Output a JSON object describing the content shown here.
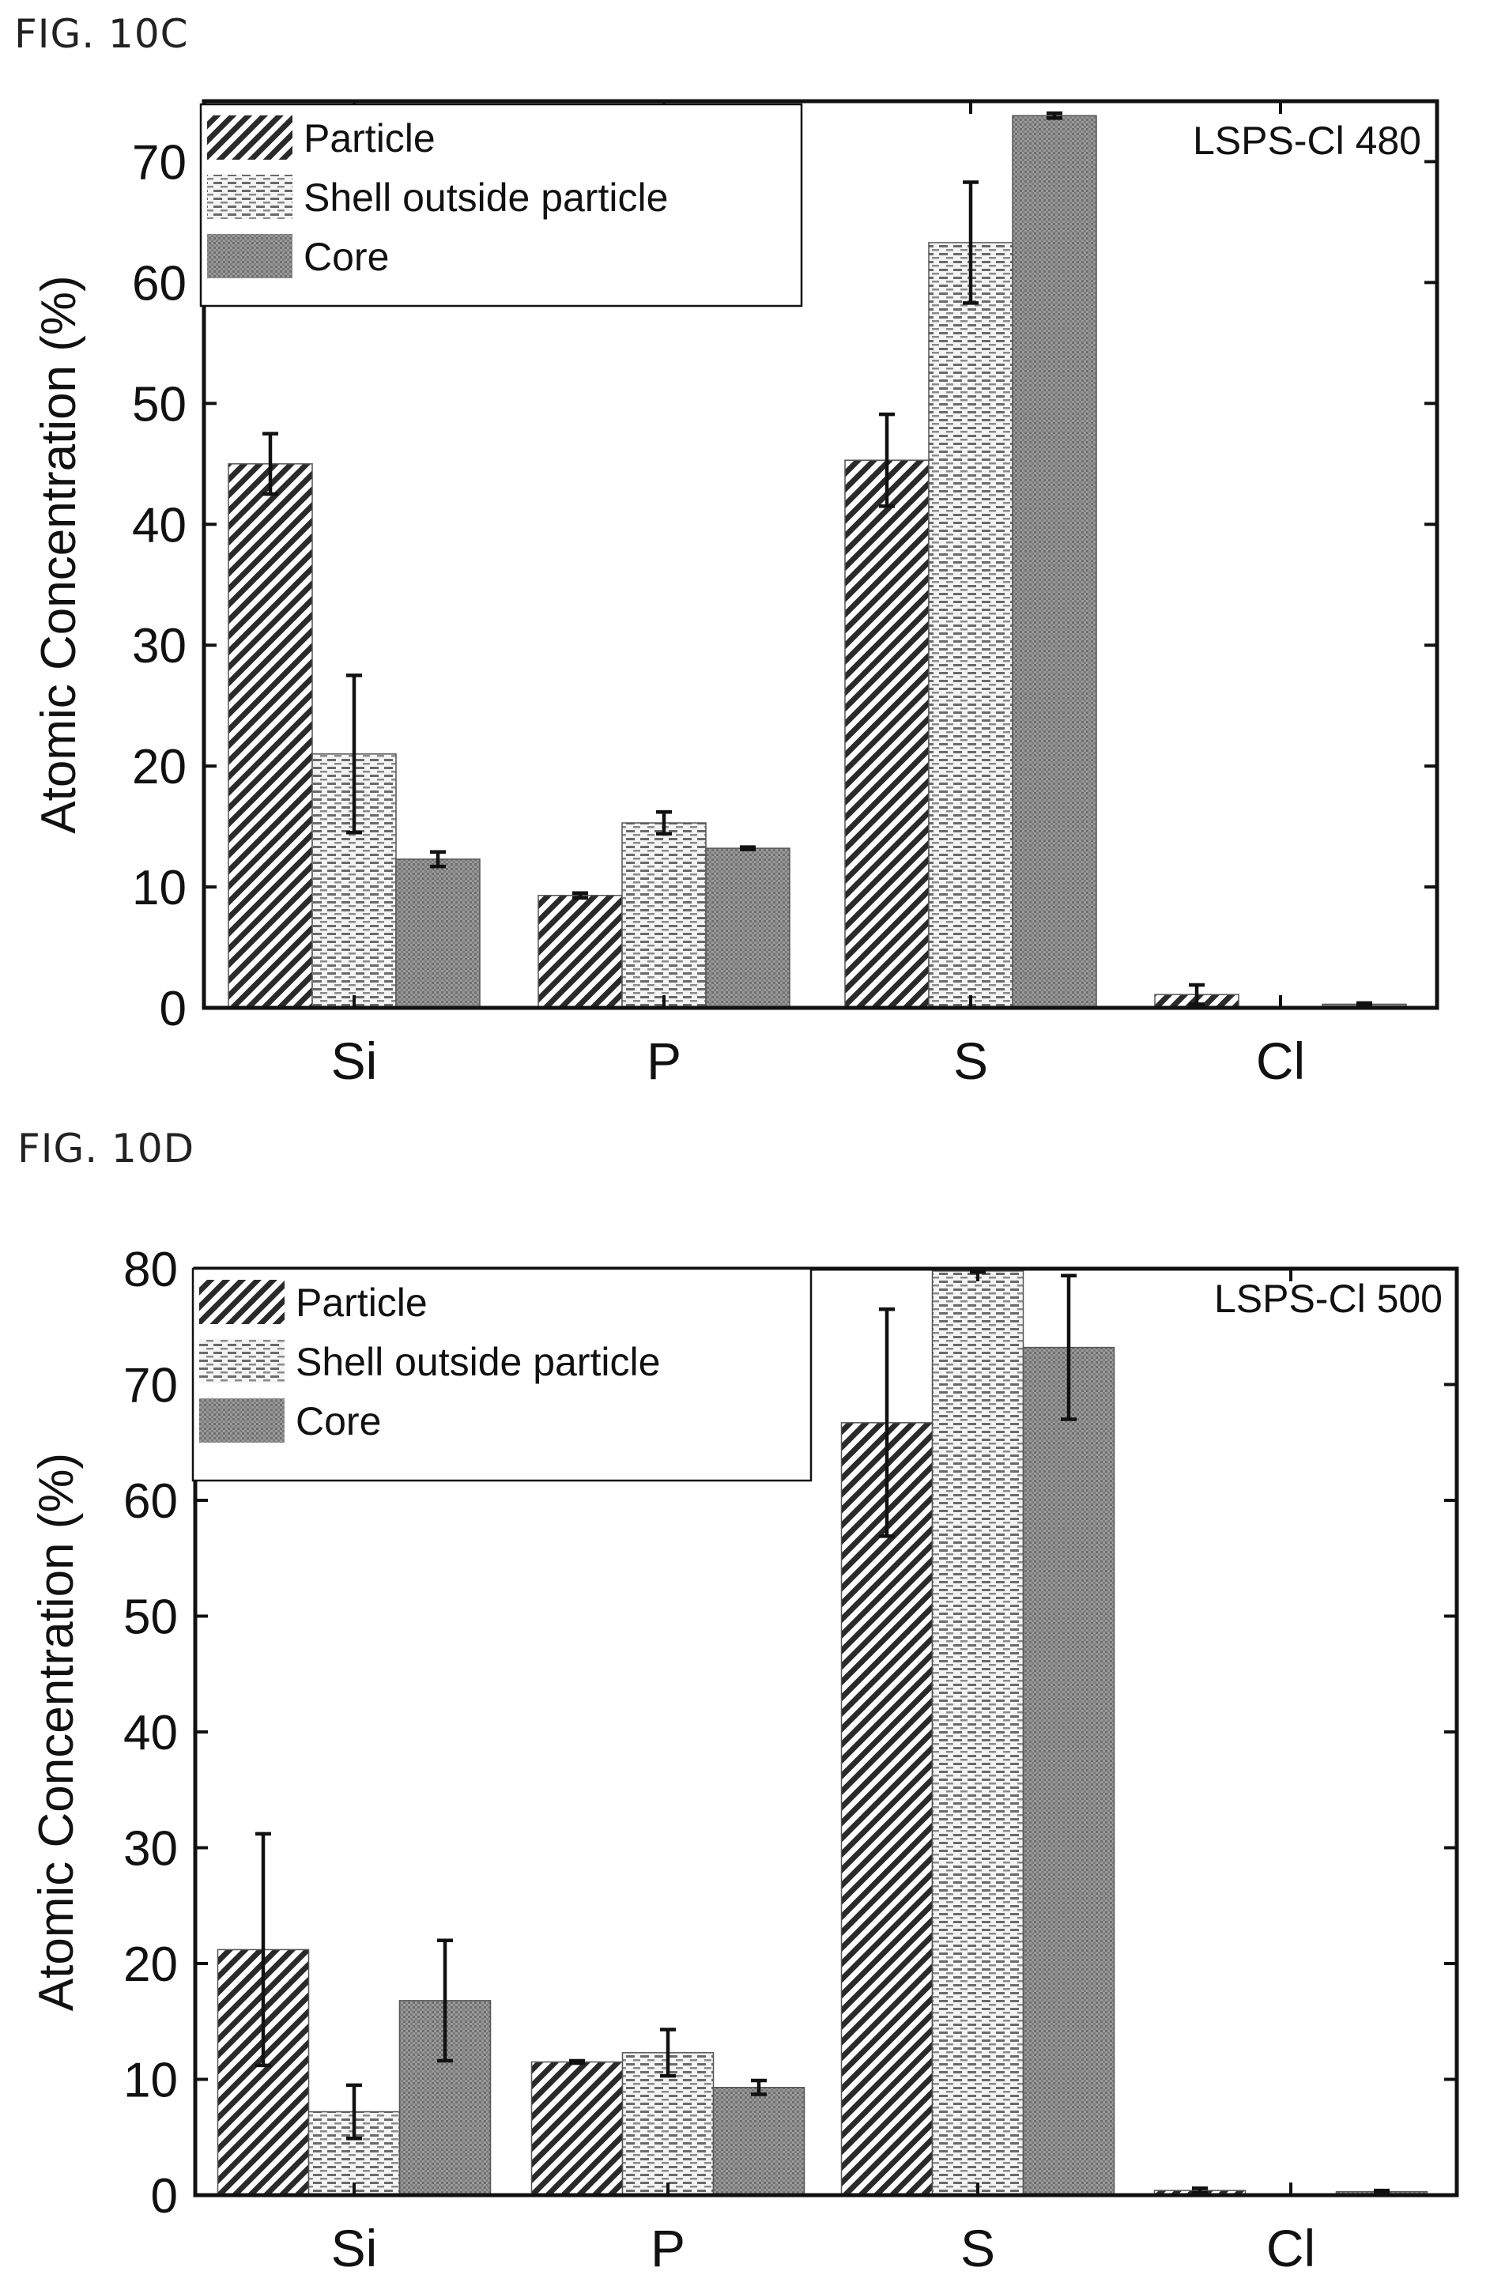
{
  "figures": [
    {
      "label": "FIG.  10C"
    },
    {
      "label": "FIG. 10D"
    }
  ],
  "chart_data": [
    {
      "type": "bar",
      "annotation": "LSPS-Cl 480",
      "ylabel": "Atomic Concentration  (%)",
      "xlabel": "",
      "categories": [
        "Si",
        "P",
        "S",
        "Cl"
      ],
      "ylim": [
        0,
        75
      ],
      "yticks": [
        0,
        10,
        20,
        30,
        40,
        50,
        60,
        70
      ],
      "legend_position": "top-left",
      "series": [
        {
          "name": "Particle",
          "pattern": "diagonal-dense",
          "values": [
            45,
            9.3,
            45.3,
            1.1
          ],
          "errors": [
            2.5,
            0.2,
            3.8,
            0.8
          ]
        },
        {
          "name": "Shell outside particle",
          "pattern": "horizontal-dashed",
          "values": [
            21,
            15.3,
            63.3,
            0
          ],
          "errors": [
            6.5,
            0.9,
            5,
            0
          ]
        },
        {
          "name": "Core",
          "pattern": "stipple",
          "values": [
            12.3,
            13.2,
            73.8,
            0.3
          ],
          "errors": [
            0.6,
            0.1,
            0.2,
            0.1
          ]
        }
      ]
    },
    {
      "type": "bar",
      "annotation": "LSPS-Cl 500",
      "ylabel": "Atomic Concentration  (%)",
      "xlabel": "",
      "categories": [
        "Si",
        "P",
        "S",
        "Cl"
      ],
      "ylim": [
        0,
        80
      ],
      "yticks": [
        0,
        10,
        20,
        30,
        40,
        50,
        60,
        70,
        80
      ],
      "legend_position": "top-left",
      "series": [
        {
          "name": "Particle",
          "pattern": "diagonal-dense",
          "values": [
            21.2,
            11.5,
            66.7,
            0.4
          ],
          "errors": [
            10,
            0.1,
            9.8,
            0.2
          ]
        },
        {
          "name": "Shell outside particle",
          "pattern": "horizontal-dashed",
          "values": [
            7.2,
            12.3,
            79.8,
            0
          ],
          "errors": [
            2.3,
            2,
            0.1,
            0
          ]
        },
        {
          "name": "Core",
          "pattern": "stipple",
          "values": [
            16.8,
            9.3,
            73.2,
            0.3
          ],
          "errors": [
            5.2,
            0.6,
            6.2,
            0.1
          ]
        }
      ]
    }
  ],
  "colors": {
    "particle_hatch": "#2a2a2a",
    "shell_hatch": "#6a6a6a",
    "core_fill": "#8c8c8c",
    "axis": "#111111",
    "background": "#ffffff"
  }
}
